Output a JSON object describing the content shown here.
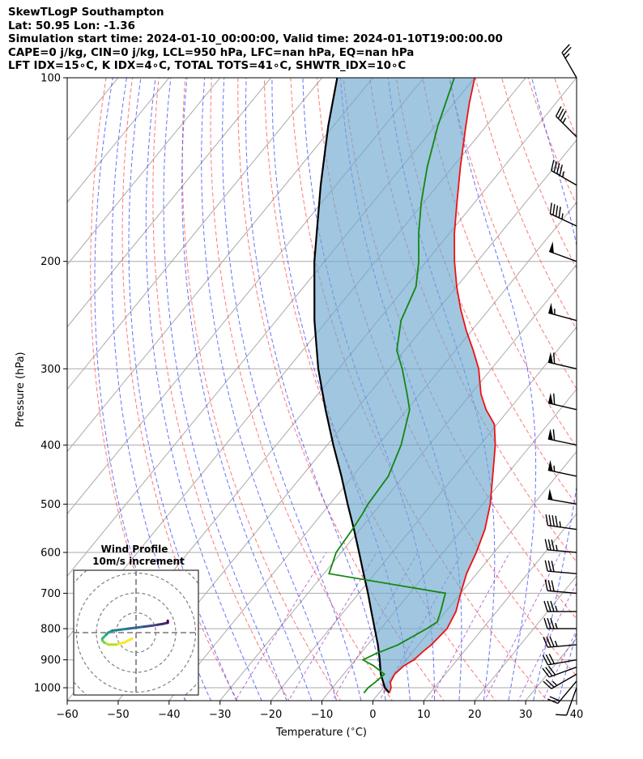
{
  "title_lines": [
    "SkewTLogP Southampton",
    "Lat: 50.95   Lon: -1.36",
    "Simulation start time: 2024-01-10_00:00:00, Valid time: 2024-01-10T19:00:00.00",
    "CAPE=0 j/kg, CIN=0 j/kg, LCL=950 hPa, LFC=nan hPa, EQ=nan hPa",
    "LFT IDX=15∘C, K IDX=4∘C, TOTAL TOTS=41∘C, SHWTR_IDX=10∘C"
  ],
  "inset": {
    "title_line1": "Wind Profile",
    "title_line2": "10m/s increment"
  },
  "colors": {
    "temperature": "#ee1111",
    "dewpoint": "#118811",
    "parcel": "#000000",
    "cape_fill": "#6fa8d0",
    "dry_adiabats": "#ff5555",
    "moist_adiabats": "#3344ff",
    "mixing_ratio": "#9933cc",
    "isotherms": "#aaaaaa"
  },
  "chart_data": {
    "type": "line",
    "subtype": "skew-T log-P diagram",
    "xlabel": "Temperature ($^\\circ$C)",
    "ylabel": "Pressure (hPa)",
    "xlim": [
      -60,
      40
    ],
    "ylim": [
      1050,
      100
    ],
    "y_scale": "log",
    "x_ticks": [
      -60,
      -50,
      -40,
      -30,
      -20,
      -10,
      0,
      10,
      20,
      30,
      40
    ],
    "x_tick_labels": [
      "−60",
      "−50",
      "−40",
      "−30",
      "−20",
      "−10",
      "0",
      "10",
      "20",
      "30",
      "40"
    ],
    "y_ticks": [
      1000,
      900,
      800,
      700,
      600,
      500,
      400,
      300,
      200,
      100
    ],
    "y_tick_labels": [
      "1000",
      "900",
      "800",
      "700",
      "600",
      "500",
      "400",
      "300",
      "200",
      "100"
    ],
    "grid": true,
    "series": [
      {
        "key": "temperature",
        "pressure": [
          1020,
          1000,
          980,
          950,
          920,
          900,
          870,
          850,
          800,
          750,
          700,
          650,
          600,
          550,
          500,
          450,
          400,
          370,
          350,
          330,
          300,
          280,
          260,
          240,
          220,
          200,
          180,
          160,
          140,
          120,
          110,
          100
        ],
        "temp": [
          2,
          1.5,
          0.5,
          0,
          0.5,
          1.5,
          2,
          2.5,
          3,
          2,
          0,
          -2,
          -3.5,
          -5.5,
          -8.5,
          -12.5,
          -17,
          -20.5,
          -24.5,
          -28,
          -32.5,
          -36.5,
          -41,
          -45.5,
          -50,
          -54.5,
          -59,
          -63.5,
          -68.5,
          -74,
          -77,
          -80
        ]
      },
      {
        "key": "dewpoint",
        "pressure": [
          1020,
          1000,
          980,
          950,
          920,
          900,
          880,
          850,
          800,
          780,
          750,
          700,
          650,
          600,
          550,
          520,
          500,
          450,
          400,
          350,
          330,
          300,
          280,
          250,
          220,
          200,
          180,
          160,
          140,
          120,
          100
        ],
        "temp": [
          -3,
          -3,
          -2.5,
          -2,
          -5.5,
          -8.5,
          -7,
          -4,
          -1,
          0,
          -1,
          -3,
          -29,
          -31,
          -31.5,
          -32,
          -32.5,
          -33,
          -35.5,
          -39.5,
          -42.5,
          -47.5,
          -51.5,
          -55.5,
          -58,
          -61.5,
          -66,
          -70.5,
          -75,
          -79.5,
          -84
        ]
      },
      {
        "key": "parcel",
        "pressure": [
          1020,
          1000,
          950,
          900,
          850,
          800,
          750,
          700,
          650,
          600,
          550,
          500,
          450,
          400,
          350,
          300,
          250,
          200,
          150,
          120,
          100
        ],
        "temp": [
          2,
          0.3,
          -2.7,
          -5.2,
          -8,
          -11.2,
          -14.6,
          -18.2,
          -22.2,
          -26.5,
          -31.2,
          -36.5,
          -42.2,
          -48.8,
          -56,
          -64,
          -72.5,
          -82,
          -93,
          -101,
          -107
        ]
      }
    ],
    "winds": {
      "pressure": [
        1000,
        975,
        950,
        925,
        900,
        850,
        800,
        750,
        700,
        650,
        600,
        550,
        500,
        450,
        400,
        350,
        300,
        250,
        200,
        175,
        150,
        125,
        100
      ],
      "speed_ms": [
        6,
        10,
        14,
        16,
        16,
        17,
        17,
        17,
        16,
        15,
        18,
        22,
        25,
        28,
        30,
        30,
        30,
        28,
        25,
        24,
        22,
        18,
        12
      ],
      "direction_deg": [
        200,
        220,
        240,
        250,
        260,
        265,
        270,
        270,
        275,
        275,
        275,
        278,
        280,
        282,
        282,
        283,
        283,
        285,
        290,
        295,
        300,
        315,
        330
      ]
    },
    "wind_hodograph": {
      "rings_ms": [
        10,
        20,
        30,
        40
      ],
      "u": [
        -2,
        -6,
        -10,
        -14,
        -16,
        -17,
        -17,
        -16,
        -15,
        -14,
        -12,
        -8,
        -4,
        0,
        4,
        8,
        11,
        14,
        16,
        16
      ],
      "v": [
        -3,
        -5,
        -6,
        -6,
        -5,
        -4,
        -3,
        -2,
        -1,
        0,
        1,
        1.5,
        2,
        2.5,
        3,
        3.5,
        4,
        4.5,
        5,
        6
      ]
    }
  }
}
